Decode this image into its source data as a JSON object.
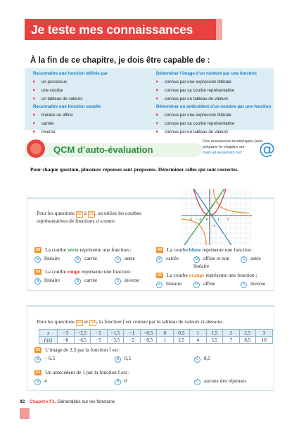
{
  "header": {
    "title": "Je teste mes connaissances"
  },
  "goals": {
    "title": "À la fin de ce chapitre, je dois être capable de :",
    "left": [
      {
        "head": "Reconnaître une fonction définie par",
        "items": [
          "un processus",
          "une courbe",
          "un tableau de valeurs"
        ]
      },
      {
        "head": "Reconnaître une fonction usuelle",
        "items": [
          "linéaire ou affine",
          "carrée",
          "inverse"
        ]
      }
    ],
    "right": [
      {
        "head": "Déterminer l’image d’un nombre par une fonction",
        "items": [
          "connue par une expression littérale",
          "connue par sa courbe représentative",
          "connue par un tableau de valeurs"
        ]
      },
      {
        "head": "Déterminer un antécédent d’un nombre par une fonction",
        "items": [
          "connue par une expression littérale",
          "connue par sa courbe représentative",
          "connue par un tableau de valeurs"
        ]
      }
    ]
  },
  "qcm": {
    "title": "QCM d’auto-évaluation",
    "resources_text": "Des ressources numériques pour préparer le chapitre sur",
    "resources_link": "manuel.sesamath.net",
    "at_symbol": "@"
  },
  "intro": "Pour chaque question, plusieurs réponses sont proposées. Déterminer celles qui sont correctes.",
  "block1": {
    "intro_a": "Pour les questions",
    "q_from": "58",
    "intro_mid": "à",
    "q_to": "61",
    "intro_b": ", on utilise les courbes représentatives de fonctions ci-contre.",
    "graph": {
      "x_ticks": [
        "−2",
        "−1",
        "0",
        "1",
        "2"
      ],
      "y_ticks": [
        "1",
        "−1"
      ],
      "colors": {
        "green": "#2a9a3a",
        "red": "#d8302e",
        "blue": "#2a7fc0",
        "orange": "#f08c20"
      }
    },
    "questions": [
      {
        "num": "58",
        "pre": "La courbe",
        "word": "verte",
        "post": "représente une fonction :",
        "options": [
          {
            "letter": "a",
            "text": "linéaire"
          },
          {
            "letter": "b",
            "text": "carrée"
          },
          {
            "letter": "c",
            "text": "autre"
          }
        ]
      },
      {
        "num": "59",
        "pre": "La courbe",
        "word": "rouge",
        "post": "représente une fonction :",
        "options": [
          {
            "letter": "a",
            "text": "linéaire"
          },
          {
            "letter": "b",
            "text": "carrée"
          },
          {
            "letter": "c",
            "text": "inverse"
          }
        ]
      },
      {
        "num": "60",
        "pre": "La courbe",
        "word": "bleue",
        "post": "représente une fonction :",
        "options": [
          {
            "letter": "a",
            "text": "carrée"
          },
          {
            "letter": "b",
            "text": "affine et non linéaire"
          },
          {
            "letter": "c",
            "text": "autre"
          }
        ]
      },
      {
        "num": "61",
        "pre": "La courbe",
        "word": "orange",
        "post": "représente une fonction :",
        "options": [
          {
            "letter": "a",
            "text": "linéaire"
          },
          {
            "letter": "b",
            "text": "affine"
          },
          {
            "letter": "c",
            "text": "inverse"
          }
        ]
      }
    ]
  },
  "block2": {
    "intro_a": "Pour les questions",
    "q_from": "62",
    "intro_mid": "et",
    "q_to": "63",
    "intro_b": ", la fonction",
    "fn": "f",
    "intro_c": "est connue par le tableau de valeurs ci-dessous.",
    "table": {
      "row_x_label": "x",
      "row_fx_label": "f (x)",
      "x": [
        "−3",
        "−2,5",
        "−2",
        "−1,5",
        "−1",
        "−0,5",
        "0",
        "0,5",
        "1",
        "1,5",
        "2",
        "2,5",
        "3"
      ],
      "fx": [
        "−8",
        "−6,5",
        "−5",
        "−3,5",
        "−2",
        "−0,5",
        "1",
        "2,5",
        "4",
        "5,5",
        "7",
        "8,5",
        "10"
      ]
    },
    "questions": [
      {
        "num": "62",
        "text": "L’image de 2,5 par la fonction f est :",
        "options": [
          {
            "letter": "a",
            "text": "− 6,5"
          },
          {
            "letter": "b",
            "text": "0,5"
          },
          {
            "letter": "c",
            "text": "8,5"
          }
        ]
      },
      {
        "num": "63",
        "text": "Un antécédent de 1 par la fonction f est :",
        "options": [
          {
            "letter": "a",
            "text": "4"
          },
          {
            "letter": "b",
            "text": "0"
          },
          {
            "letter": "c",
            "text": "aucune des réponses"
          }
        ]
      }
    ]
  },
  "footer": {
    "page": "92",
    "chapter": "Chapitre F1.",
    "chapter_title": "Généralités sur les fonctions"
  }
}
